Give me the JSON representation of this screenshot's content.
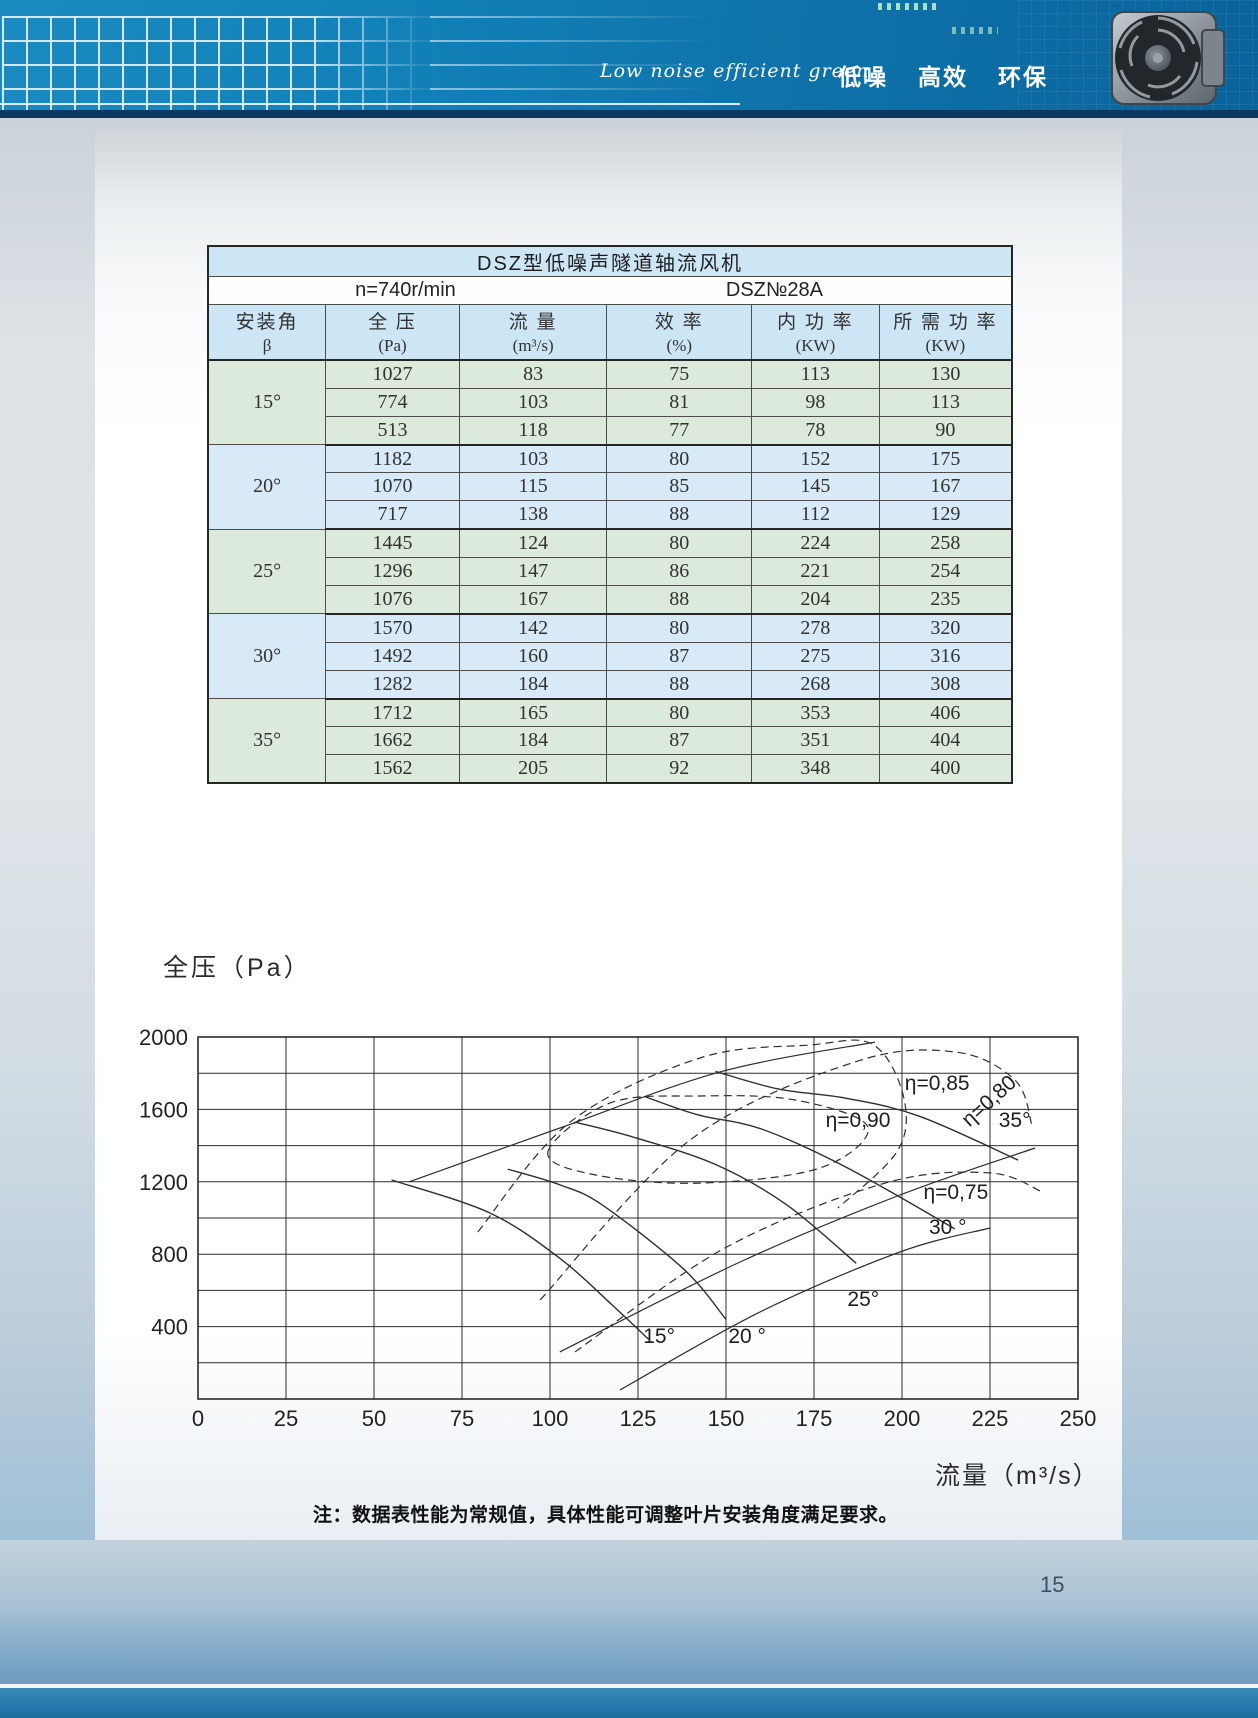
{
  "header": {
    "slogan_script": "Low noise efficient green",
    "slogan_cn": [
      "低噪",
      "高效",
      "环保"
    ]
  },
  "table": {
    "title": "DSZ型低噪声隧道轴流风机",
    "speed": "n=740r/min",
    "model": "DSZ№28A",
    "columns": [
      {
        "line1": "安装角",
        "line2": "β"
      },
      {
        "line1": "全  压",
        "line2": "(Pa)"
      },
      {
        "line1": "流  量",
        "line2": "(m³/s)"
      },
      {
        "line1": "效  率",
        "line2": "(%)"
      },
      {
        "line1": "内 功 率",
        "line2": "(KW)"
      },
      {
        "line1": "所 需 功 率",
        "line2": "(KW)"
      }
    ],
    "groups": [
      {
        "angle": "15°",
        "tone": "green",
        "rows": [
          [
            1027,
            83,
            75,
            113,
            130
          ],
          [
            774,
            103,
            81,
            98,
            113
          ],
          [
            513,
            118,
            77,
            78,
            90
          ]
        ]
      },
      {
        "angle": "20°",
        "tone": "blue",
        "rows": [
          [
            1182,
            103,
            80,
            152,
            175
          ],
          [
            1070,
            115,
            85,
            145,
            167
          ],
          [
            717,
            138,
            88,
            112,
            129
          ]
        ]
      },
      {
        "angle": "25°",
        "tone": "green",
        "rows": [
          [
            1445,
            124,
            80,
            224,
            258
          ],
          [
            1296,
            147,
            86,
            221,
            254
          ],
          [
            1076,
            167,
            88,
            204,
            235
          ]
        ]
      },
      {
        "angle": "30°",
        "tone": "blue",
        "rows": [
          [
            1570,
            142,
            80,
            278,
            320
          ],
          [
            1492,
            160,
            87,
            275,
            316
          ],
          [
            1282,
            184,
            88,
            268,
            308
          ]
        ]
      },
      {
        "angle": "35°",
        "tone": "green",
        "rows": [
          [
            1712,
            165,
            80,
            353,
            406
          ],
          [
            1662,
            184,
            87,
            351,
            404
          ],
          [
            1562,
            205,
            92,
            348,
            400
          ]
        ]
      }
    ]
  },
  "chart_data": {
    "type": "line",
    "title": "",
    "ylabel": "全压（Pa）",
    "xlabel": "流量（m³/s）",
    "xlim": [
      0,
      250
    ],
    "ylim": [
      0,
      2000
    ],
    "xticks": [
      0,
      25,
      50,
      75,
      100,
      125,
      150,
      175,
      200,
      225,
      250
    ],
    "yticks": [
      400,
      800,
      1200,
      1600,
      2000
    ],
    "grid": true,
    "grid_step_y": 200,
    "series": [
      {
        "name": "15°",
        "points": [
          [
            55,
            1210
          ],
          [
            83,
            1027
          ],
          [
            103,
            774
          ],
          [
            118,
            513
          ],
          [
            128,
            330
          ]
        ]
      },
      {
        "name": "20°",
        "points": [
          [
            88,
            1270
          ],
          [
            103,
            1182
          ],
          [
            115,
            1070
          ],
          [
            138,
            717
          ],
          [
            150,
            440
          ]
        ]
      },
      {
        "name": "25°",
        "points": [
          [
            107,
            1530
          ],
          [
            124,
            1445
          ],
          [
            147,
            1296
          ],
          [
            167,
            1076
          ],
          [
            187,
            750
          ]
        ]
      },
      {
        "name": "30°",
        "points": [
          [
            127,
            1670
          ],
          [
            142,
            1570
          ],
          [
            160,
            1492
          ],
          [
            184,
            1282
          ],
          [
            215,
            940
          ]
        ]
      },
      {
        "name": "35°",
        "points": [
          [
            147,
            1810
          ],
          [
            165,
            1712
          ],
          [
            184,
            1662
          ],
          [
            205,
            1562
          ],
          [
            233,
            1320
          ]
        ]
      }
    ],
    "efficiency_contours": [
      {
        "value": "η=0,90",
        "closed": true,
        "points": [
          [
            99.4,
            1365
          ],
          [
            117,
            1635
          ],
          [
            142.6,
            1674
          ],
          [
            169.6,
            1652
          ],
          [
            190.3,
            1503
          ],
          [
            176.7,
            1276
          ],
          [
            142.6,
            1193
          ],
          [
            112.8,
            1238
          ]
        ]
      },
      {
        "value": "η=0,85",
        "closed": false,
        "points": [
          [
            79.5,
            923
          ],
          [
            105.7,
            1530
          ],
          [
            142.6,
            1884
          ],
          [
            173.9,
            1956
          ],
          [
            191.5,
            1961
          ],
          [
            200.3,
            1680
          ],
          [
            198.9,
            1376
          ],
          [
            181.8,
            1055
          ]
        ]
      },
      {
        "value": "η=0,80",
        "closed": false,
        "points": [
          [
            97.2,
            547
          ],
          [
            139.8,
            1431
          ],
          [
            186.6,
            1862
          ],
          [
            215.1,
            1917
          ],
          [
            232.1,
            1762
          ],
          [
            236.9,
            1514
          ]
        ]
      },
      {
        "value": "η=0,75",
        "closed": false,
        "points": [
          [
            107.1,
            260
          ],
          [
            149.7,
            834
          ],
          [
            195.2,
            1193
          ],
          [
            225,
            1249
          ],
          [
            239.8,
            1144
          ]
        ]
      }
    ],
    "guide_lines": [
      {
        "points": [
          [
            59.9,
            1199
          ],
          [
            102.8,
            1497
          ],
          [
            148.3,
            1807
          ],
          [
            192.3,
            1972
          ]
        ]
      },
      {
        "points": [
          [
            102.8,
            260
          ],
          [
            154,
            757
          ],
          [
            199.4,
            1127
          ],
          [
            237.8,
            1387
          ]
        ]
      },
      {
        "points": [
          [
            119.9,
            50
          ],
          [
            159.7,
            481
          ],
          [
            199.4,
            812
          ],
          [
            225,
            945
          ]
        ]
      }
    ],
    "annotations": [
      {
        "text": "15°",
        "f": 131,
        "p": 310,
        "rotate": 0
      },
      {
        "text": "20 °",
        "f": 156,
        "p": 310,
        "rotate": 0
      },
      {
        "text": "25°",
        "f": 189,
        "p": 514,
        "rotate": 0
      },
      {
        "text": "30 °",
        "f": 213,
        "p": 911,
        "rotate": 0
      },
      {
        "text": "35°",
        "f": 232,
        "p": 1503,
        "rotate": 0
      },
      {
        "text": "η=0,90",
        "f": 187.5,
        "p": 1503,
        "rotate": 0
      },
      {
        "text": "η=0,85",
        "f": 210,
        "p": 1707,
        "rotate": 0
      },
      {
        "text": "η=0,80",
        "f": 226,
        "p": 1619,
        "rotate": -42
      },
      {
        "text": "η=0,75",
        "f": 215.3,
        "p": 1105,
        "rotate": 0
      }
    ]
  },
  "note": "注：数据表性能为常规值，具体性能可调整叶片安装角度满足要求。",
  "page_number": "15"
}
